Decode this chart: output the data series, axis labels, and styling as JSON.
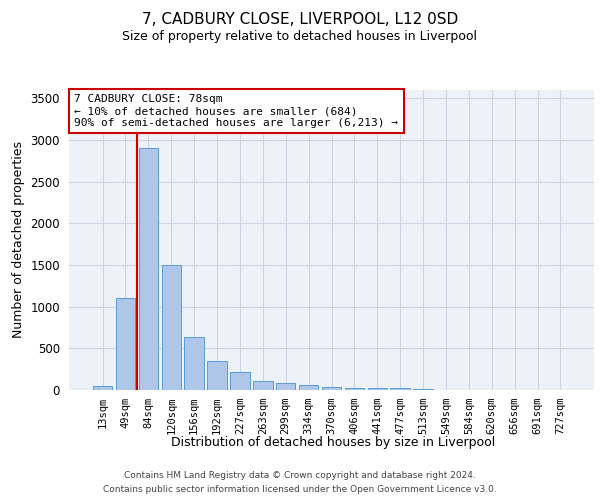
{
  "title": "7, CADBURY CLOSE, LIVERPOOL, L12 0SD",
  "subtitle": "Size of property relative to detached houses in Liverpool",
  "xlabel": "Distribution of detached houses by size in Liverpool",
  "ylabel": "Number of detached properties",
  "categories": [
    "13sqm",
    "49sqm",
    "84sqm",
    "120sqm",
    "156sqm",
    "192sqm",
    "227sqm",
    "263sqm",
    "299sqm",
    "334sqm",
    "370sqm",
    "406sqm",
    "441sqm",
    "477sqm",
    "513sqm",
    "549sqm",
    "584sqm",
    "620sqm",
    "656sqm",
    "691sqm",
    "727sqm"
  ],
  "values": [
    50,
    1100,
    2900,
    1500,
    635,
    345,
    220,
    105,
    90,
    55,
    35,
    30,
    30,
    20,
    10,
    5,
    5,
    3,
    2,
    2,
    2
  ],
  "bar_color": "#aec6e8",
  "bar_edge_color": "#5b9bd5",
  "grid_color": "#ccd5e3",
  "background_color": "#edf1f8",
  "vline_color": "#cc0000",
  "vline_x": 1.5,
  "annotation_text": "7 CADBURY CLOSE: 78sqm\n← 10% of detached houses are smaller (684)\n90% of semi-detached houses are larger (6,213) →",
  "annotation_box_facecolor": "#ffffff",
  "annotation_box_edgecolor": "#cc0000",
  "ylim": [
    0,
    3600
  ],
  "yticks": [
    0,
    500,
    1000,
    1500,
    2000,
    2500,
    3000,
    3500
  ],
  "title_fontsize": 11,
  "subtitle_fontsize": 9,
  "ylabel_fontsize": 9,
  "xlabel_fontsize": 9,
  "tick_fontsize": 8.5,
  "xtick_fontsize": 7.5,
  "annotation_fontsize": 8,
  "footnote_line1": "Contains HM Land Registry data © Crown copyright and database right 2024.",
  "footnote_line2": "Contains public sector information licensed under the Open Government Licence v3.0.",
  "footnote_fontsize": 6.5
}
